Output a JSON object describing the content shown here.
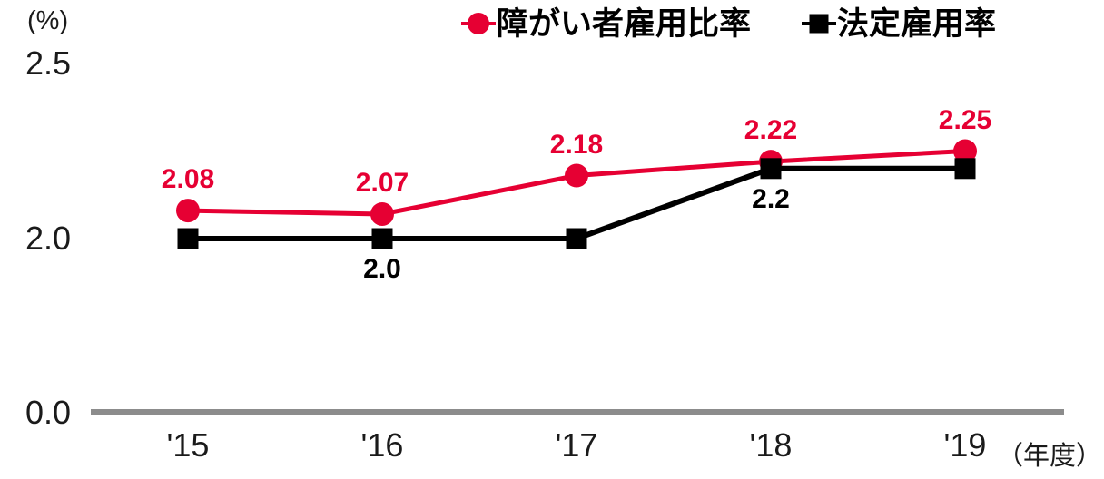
{
  "chart_data": {
    "type": "line",
    "title": "",
    "ylabel": "(%)",
    "xlabel": "（年度）",
    "categories": [
      "'15",
      "'16",
      "'17",
      "'18",
      "'19"
    ],
    "y_ticks": [
      {
        "label": "2.5",
        "value": 2.5
      },
      {
        "label": "2.0",
        "value": 2.0
      },
      {
        "label": "0.0",
        "value": 0.0
      }
    ],
    "ylim": [
      0,
      2.5
    ],
    "grid": false,
    "legend_position": "top-right",
    "axis_color": "#8c8c8c",
    "series": [
      {
        "name": "障がい者雇用比率",
        "color": "#e60033",
        "marker": "circle",
        "values": [
          2.08,
          2.07,
          2.18,
          2.22,
          2.25
        ],
        "point_labels": [
          "2.08",
          "2.07",
          "2.18",
          "2.22",
          "2.25"
        ],
        "label_side": "above"
      },
      {
        "name": "法定雇用率",
        "color": "#000000",
        "marker": "square",
        "values": [
          2.0,
          2.0,
          2.0,
          2.2,
          2.2
        ],
        "point_labels": [
          null,
          "2.0",
          null,
          "2.2",
          null
        ],
        "label_side": "below"
      }
    ]
  }
}
